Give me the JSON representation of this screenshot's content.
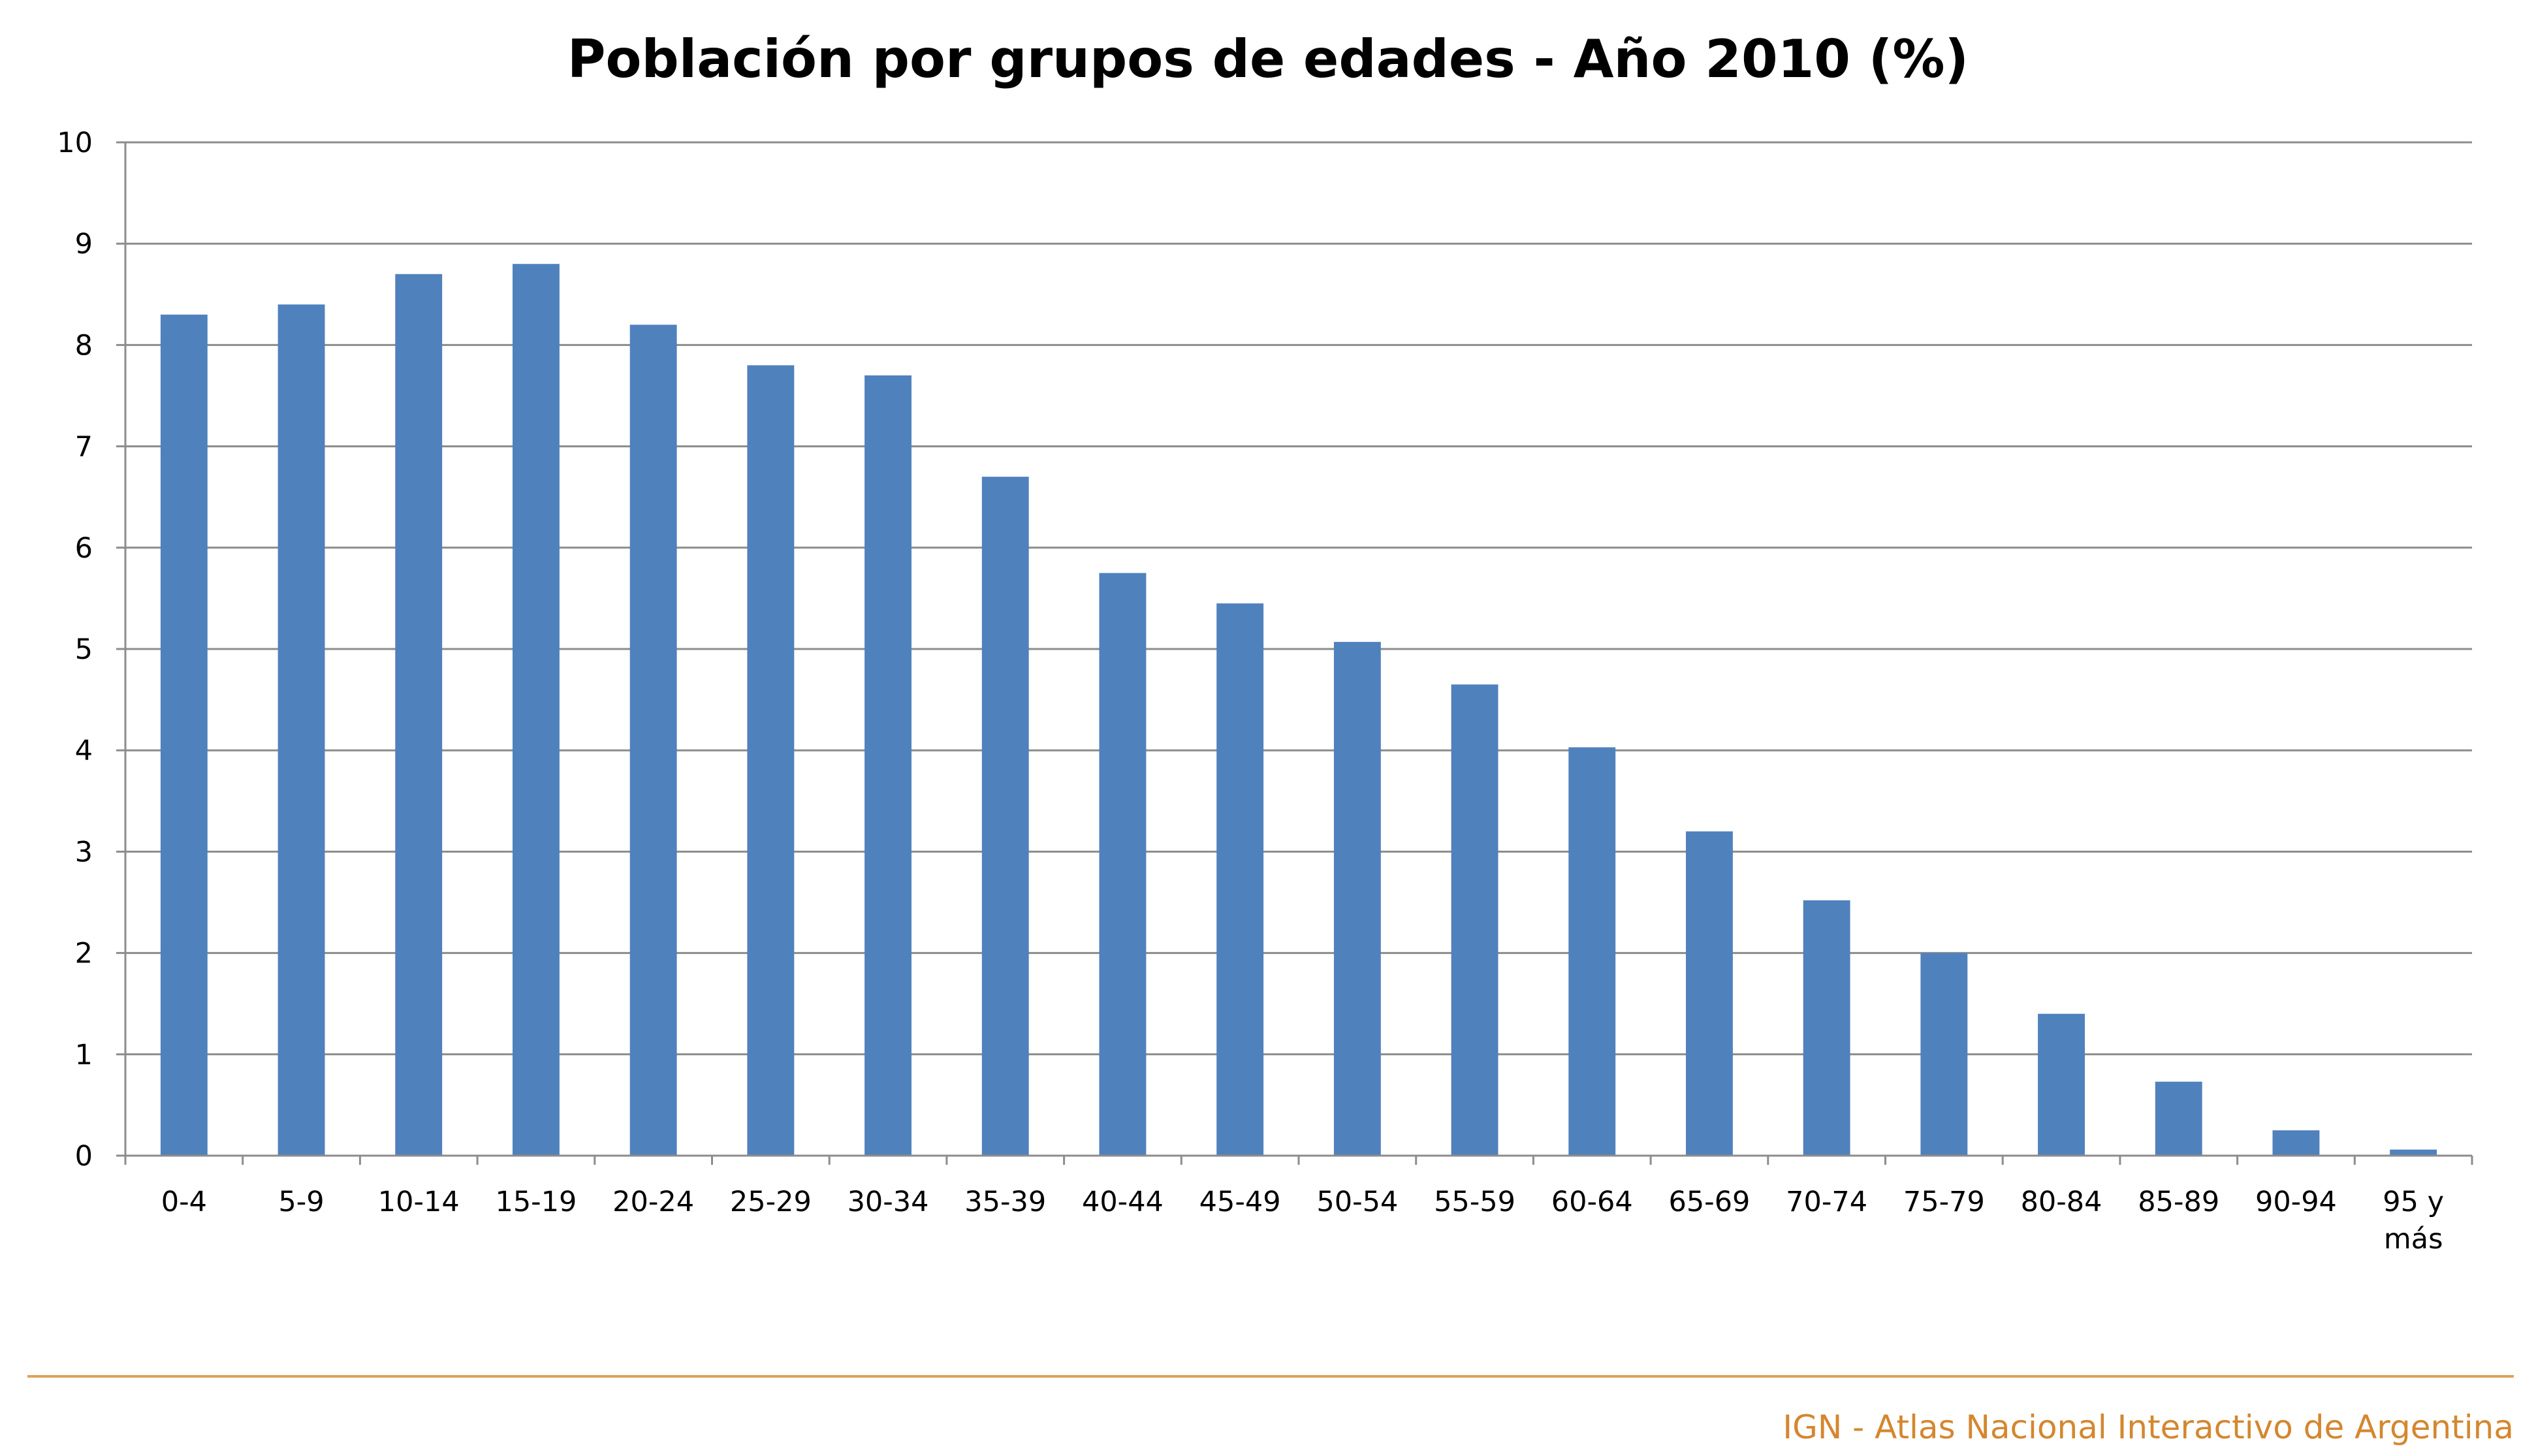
{
  "chart_data": {
    "type": "bar",
    "title": "Población por grupos de edades - Año 2010 (%)",
    "xlabel": "",
    "ylabel": "",
    "categories": [
      "0-4",
      "5-9",
      "10-14",
      "15-19",
      "20-24",
      "25-29",
      "30-34",
      "35-39",
      "40-44",
      "45-49",
      "50-54",
      "55-59",
      "60-64",
      "65-69",
      "70-74",
      "75-79",
      "80-84",
      "85-89",
      "90-94",
      "95 y más"
    ],
    "category_lines": [
      [
        "0-4"
      ],
      [
        "5-9"
      ],
      [
        "10-14"
      ],
      [
        "15-19"
      ],
      [
        "20-24"
      ],
      [
        "25-29"
      ],
      [
        "30-34"
      ],
      [
        "35-39"
      ],
      [
        "40-44"
      ],
      [
        "45-49"
      ],
      [
        "50-54"
      ],
      [
        "55-59"
      ],
      [
        "60-64"
      ],
      [
        "65-69"
      ],
      [
        "70-74"
      ],
      [
        "75-79"
      ],
      [
        "80-84"
      ],
      [
        "85-89"
      ],
      [
        "90-94"
      ],
      [
        "95 y",
        "más"
      ]
    ],
    "values": [
      8.3,
      8.4,
      8.7,
      8.8,
      8.2,
      7.8,
      7.7,
      6.7,
      5.75,
      5.45,
      5.07,
      4.65,
      4.03,
      3.2,
      2.52,
      2.0,
      1.4,
      0.73,
      0.25,
      0.06
    ],
    "ylim": [
      0,
      10
    ],
    "yticks": [
      0,
      1,
      2,
      3,
      4,
      5,
      6,
      7,
      8,
      9,
      10
    ],
    "grid": true,
    "legend": "none",
    "bar_color": "#4f81bd"
  },
  "footer": {
    "credit": "IGN - Atlas Nacional Interactivo de Argentina",
    "line_color": "#e0a15a",
    "text_color": "#d4872f"
  }
}
